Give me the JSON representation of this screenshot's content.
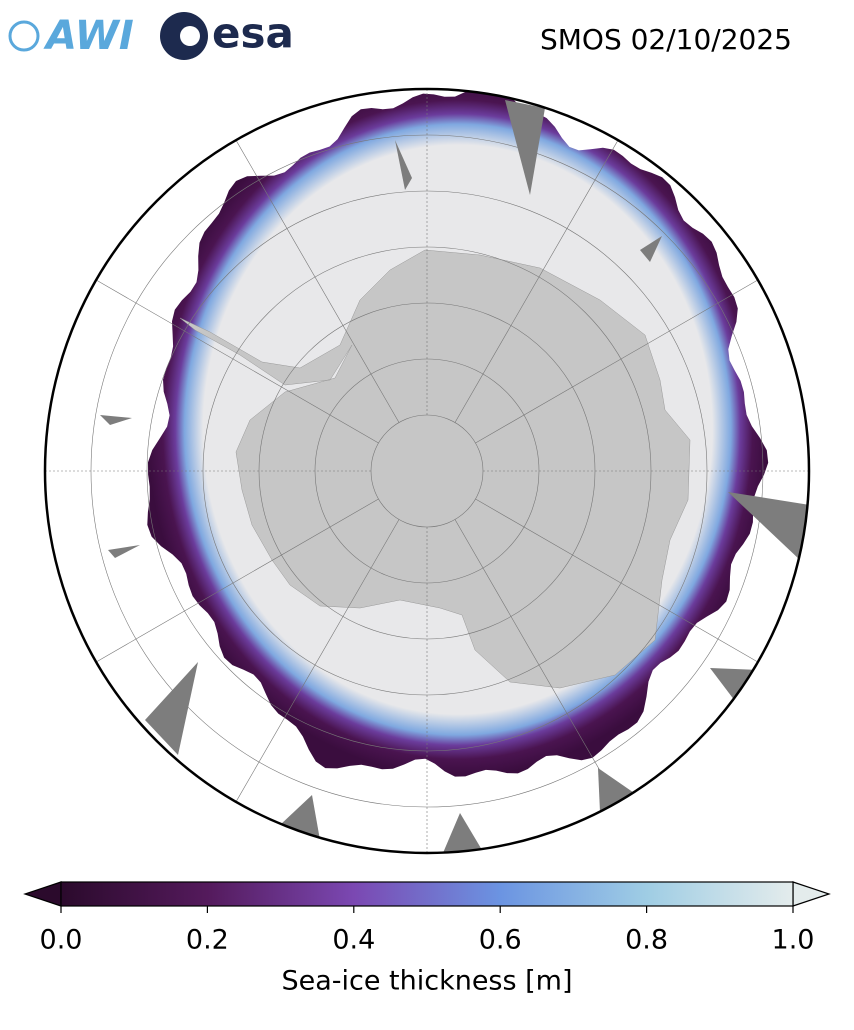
{
  "header": {
    "logos": [
      "AWI",
      "esa"
    ],
    "title": "SMOS 02/10/2025"
  },
  "colorbar": {
    "label": "Sea-ice thickness [m]",
    "lim": [
      0,
      1
    ],
    "ticks": [
      {
        "value": 0,
        "label": "0.0"
      },
      {
        "value": 0.2,
        "label": "0.2"
      },
      {
        "value": 0.4,
        "label": "0.4"
      },
      {
        "value": 0.6,
        "label": "0.6"
      },
      {
        "value": 0.8,
        "label": "0.8"
      },
      {
        "value": 1,
        "label": "1.0"
      }
    ]
  }
}
